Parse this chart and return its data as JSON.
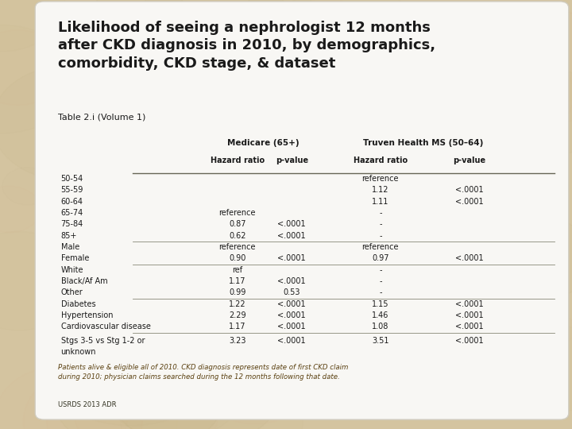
{
  "title": "Likelihood of seeing a nephrologist 12 months\nafter CKD diagnosis in 2010, by demographics,\ncomorbidity, CKD stage, & dataset",
  "subtitle": "Table 2.i (Volume 1)",
  "col_headers": [
    "Medicare (65+)",
    "Truven Health MS (50–64)"
  ],
  "col_subheaders": [
    "Hazard ratio",
    "p-value",
    "Hazard ratio",
    "p-value"
  ],
  "rows": [
    {
      "label": "50-54",
      "med_hr": "",
      "med_p": "",
      "tru_hr": "reference",
      "tru_p": ""
    },
    {
      "label": "55-59",
      "med_hr": "",
      "med_p": "",
      "tru_hr": "1.12",
      "tru_p": "<.0001"
    },
    {
      "label": "60-64",
      "med_hr": "",
      "med_p": "",
      "tru_hr": "1.11",
      "tru_p": "<.0001"
    },
    {
      "label": "65-74",
      "med_hr": "reference",
      "med_p": "",
      "tru_hr": "-",
      "tru_p": ""
    },
    {
      "label": "75-84",
      "med_hr": "0.87",
      "med_p": "<.0001",
      "tru_hr": "-",
      "tru_p": ""
    },
    {
      "label": "85+",
      "med_hr": "0.62",
      "med_p": "<.0001",
      "tru_hr": "-",
      "tru_p": ""
    },
    {
      "label": "Male",
      "med_hr": "reference",
      "med_p": "",
      "tru_hr": "reference",
      "tru_p": ""
    },
    {
      "label": "Female",
      "med_hr": "0.90",
      "med_p": "<.0001",
      "tru_hr": "0.97",
      "tru_p": "<.0001"
    },
    {
      "label": "White",
      "med_hr": "ref",
      "med_p": "",
      "tru_hr": "-",
      "tru_p": ""
    },
    {
      "label": "Black/Af Am",
      "med_hr": "1.17",
      "med_p": "<.0001",
      "tru_hr": "-",
      "tru_p": ""
    },
    {
      "label": "Other",
      "med_hr": "0.99",
      "med_p": "0.53",
      "tru_hr": "-",
      "tru_p": ""
    },
    {
      "label": "Diabetes",
      "med_hr": "1.22",
      "med_p": "<.0001",
      "tru_hr": "1.15",
      "tru_p": "<.0001"
    },
    {
      "label": "Hypertension",
      "med_hr": "2.29",
      "med_p": "<.0001",
      "tru_hr": "1.46",
      "tru_p": "<.0001"
    },
    {
      "label": "Cardiovascular disease",
      "med_hr": "1.17",
      "med_p": "<.0001",
      "tru_hr": "1.08",
      "tru_p": "<.0001"
    },
    {
      "label": "Stgs 3-5 vs Stg 1-2 or\nunknown",
      "med_hr": "3.23",
      "med_p": "<.0001",
      "tru_hr": "3.51",
      "tru_p": "<.0001"
    }
  ],
  "footer": "Patients alive & eligible all of 2010. CKD diagnosis represents date of first CKD claim\nduring 2010; physician claims searched during the 12 months following that date.",
  "source": "USRDS 2013 ADR",
  "bg_color": "#d4c4a0",
  "card_color": "#f8f7f4",
  "title_color": "#1a1a1a",
  "header_color": "#1a1a1a",
  "row_text_color": "#1a1a1a",
  "footer_color": "#5a4010",
  "divider_after": [
    5,
    7,
    10,
    13
  ]
}
